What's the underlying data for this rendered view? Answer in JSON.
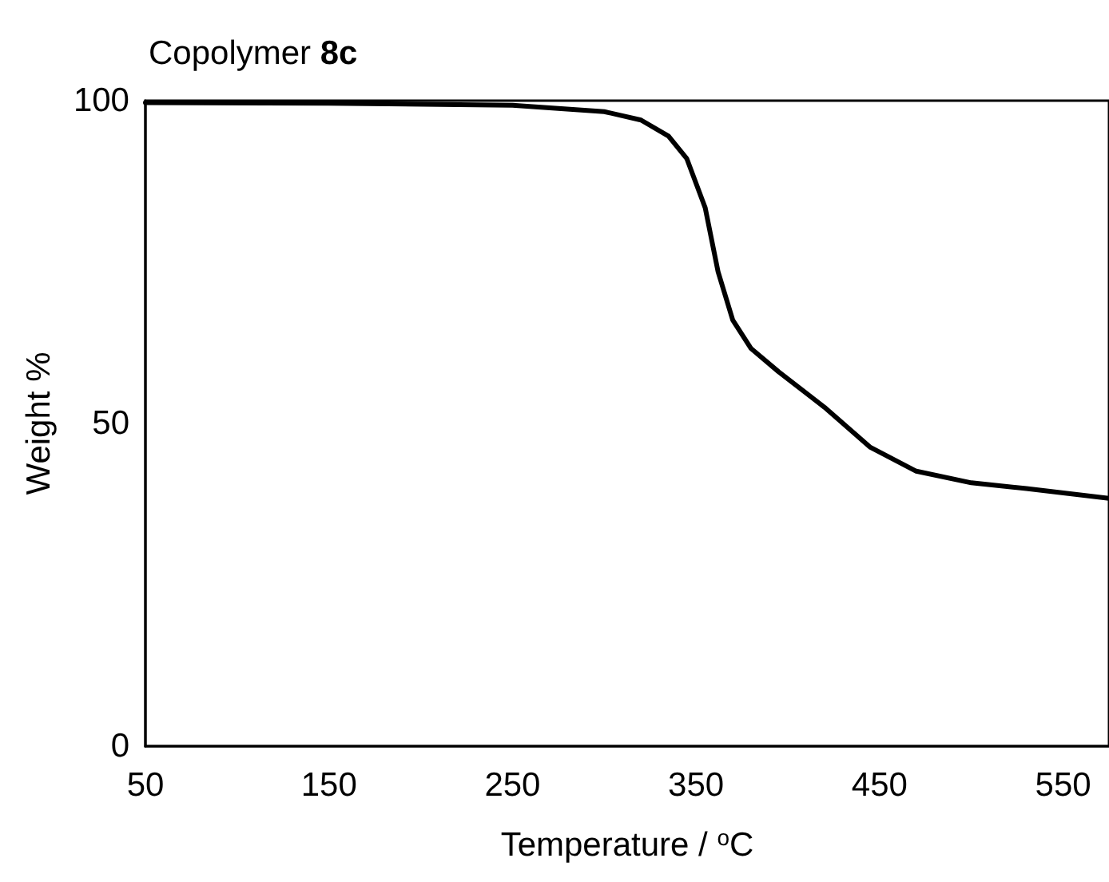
{
  "chart_data": {
    "type": "line",
    "title": "Copolymer 8c",
    "xlabel": "Temperature / $^{o}$C",
    "ylabel": "Weight %",
    "x": [
      50,
      150,
      250,
      300,
      320,
      335,
      345,
      355,
      362,
      370,
      380,
      395,
      420,
      445,
      470,
      500,
      530,
      575
    ],
    "series": [
      {
        "color": "#000000",
        "values": [
          99.7,
          99.6,
          99.3,
          98.3,
          97,
          94.5,
          91,
          83.4,
          73.5,
          66,
          61.6,
          58,
          52.5,
          46.3,
          42.6,
          40.8,
          39.9,
          38.4
        ]
      }
    ],
    "xlim": [
      50,
      575
    ],
    "xticks": [
      50,
      150,
      250,
      350,
      450,
      550
    ],
    "ylim": [
      0,
      100
    ],
    "yticks": [
      0,
      50,
      100
    ],
    "grid": false,
    "marker": "none",
    "line_style": "solid"
  }
}
